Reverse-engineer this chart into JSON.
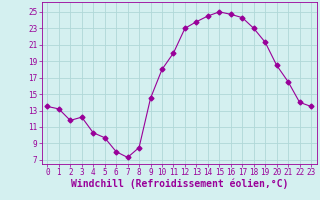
{
  "x": [
    0,
    1,
    2,
    3,
    4,
    5,
    6,
    7,
    8,
    9,
    10,
    11,
    12,
    13,
    14,
    15,
    16,
    17,
    18,
    19,
    20,
    21,
    22,
    23
  ],
  "y": [
    13.5,
    13.2,
    11.8,
    12.2,
    10.3,
    9.7,
    8.0,
    7.3,
    8.5,
    14.5,
    18.0,
    20.0,
    23.0,
    23.8,
    24.5,
    25.0,
    24.7,
    24.3,
    23.0,
    21.3,
    18.5,
    16.5,
    14.0,
    13.5
  ],
  "line_color": "#990099",
  "marker": "D",
  "marker_size": 2.5,
  "bg_color": "#d4f0f0",
  "grid_color": "#b0d8d8",
  "xlabel": "Windchill (Refroidissement éolien,°C)",
  "xlabel_color": "#990099",
  "yticks": [
    7,
    9,
    11,
    13,
    15,
    17,
    19,
    21,
    23,
    25
  ],
  "xticks": [
    0,
    1,
    2,
    3,
    4,
    5,
    6,
    7,
    8,
    9,
    10,
    11,
    12,
    13,
    14,
    15,
    16,
    17,
    18,
    19,
    20,
    21,
    22,
    23
  ],
  "xlim": [
    -0.5,
    23.5
  ],
  "ylim": [
    6.5,
    26.2
  ],
  "tick_color": "#990099",
  "tick_fontsize": 5.5,
  "xlabel_fontsize": 7.0
}
